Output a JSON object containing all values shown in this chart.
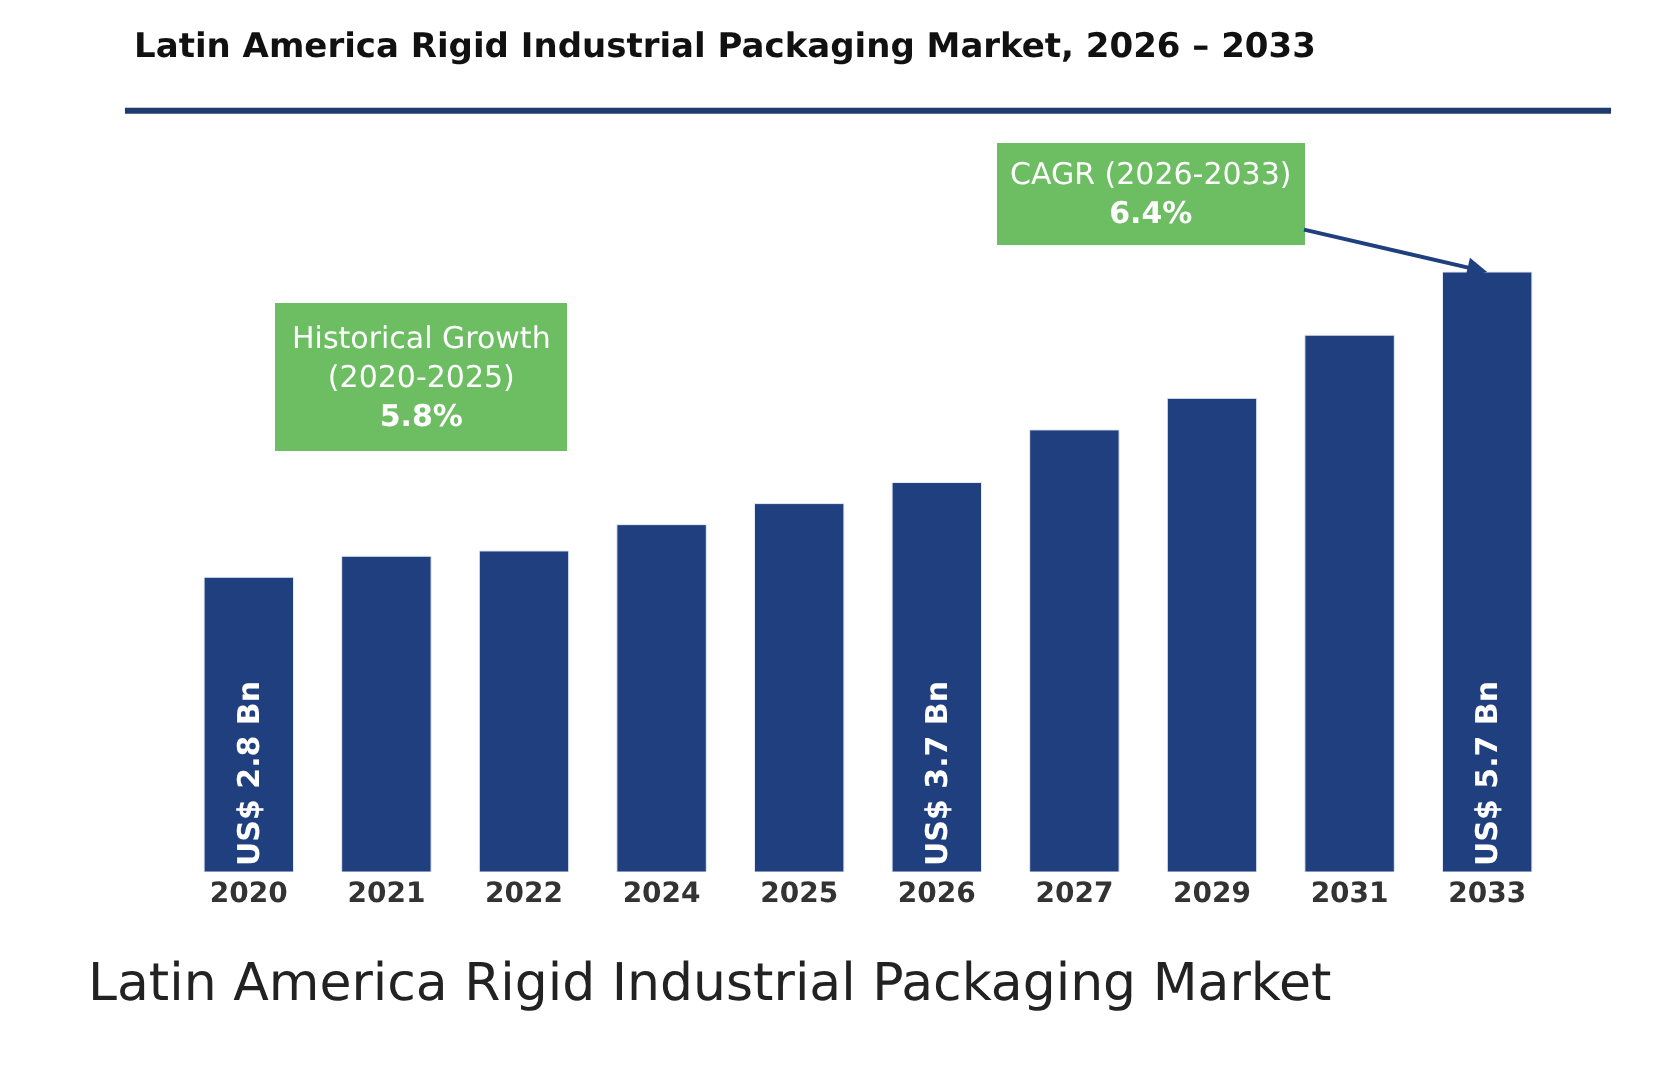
{
  "chart_data": {
    "type": "bar",
    "title": "Latin America Rigid Industrial Packaging Market, 2026 – 2033",
    "categories": [
      "2020",
      "2021",
      "2022",
      "2024",
      "2025",
      "2026",
      "2027",
      "2029",
      "2031",
      "2033"
    ],
    "values": [
      2.8,
      3.0,
      3.05,
      3.3,
      3.5,
      3.7,
      4.2,
      4.5,
      5.1,
      5.7
    ],
    "value_labels": [
      "US$ 2.8 Bn",
      null,
      null,
      null,
      null,
      "US$ 3.7 Bn",
      null,
      null,
      null,
      "US$ 5.7 Bn"
    ],
    "color": "#203f7f",
    "annotations": [
      "Historical Growth\n(2020-2025)\n5.8%",
      {
        "text": "CAGR (2026-2033)\n6.4%",
        "x": "2033",
        "y": 5.7
      },
      "Latin America Rigid Industrial Packaging Market"
    ],
    "legend": false
  }
}
